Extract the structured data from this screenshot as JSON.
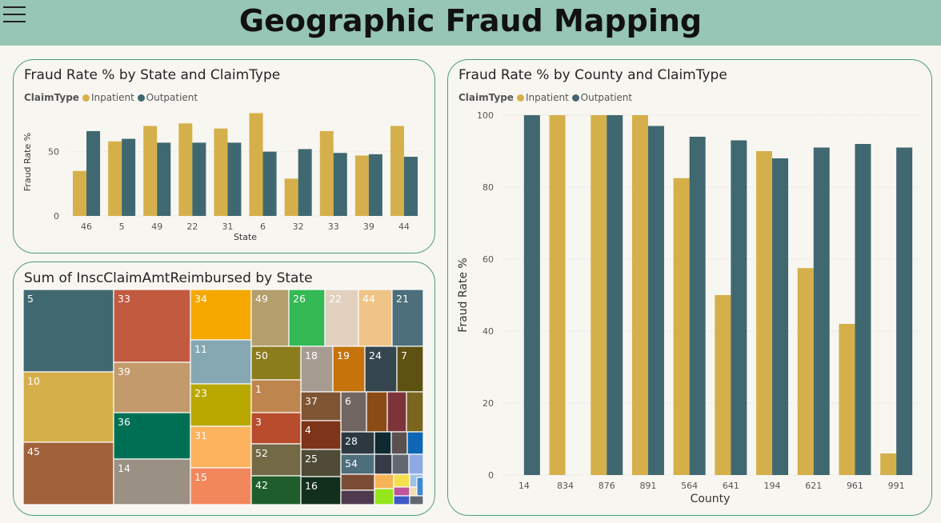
{
  "header": {
    "title": "Geographic Fraud Mapping"
  },
  "colors": {
    "inpatient": "#d5b04a",
    "outpatient": "#406871",
    "header_bg": "#97c5b6",
    "card_border": "#4f9a7a"
  },
  "chart_data": [
    {
      "type": "bar",
      "title": "Fraud Rate % by State and ClaimType",
      "legend_title": "ClaimType",
      "xlabel": "State",
      "ylabel": "Fraud Rate %",
      "categories": [
        "46",
        "5",
        "49",
        "22",
        "31",
        "6",
        "32",
        "33",
        "39",
        "44"
      ],
      "series": [
        {
          "name": "Inpatient",
          "values": [
            35,
            58,
            70,
            72,
            68,
            80,
            29,
            66,
            47,
            70
          ]
        },
        {
          "name": "Outpatient",
          "values": [
            66,
            60,
            57,
            57,
            57,
            50,
            52,
            49,
            48,
            46
          ]
        }
      ],
      "yticks": [
        0,
        50
      ],
      "ylim": [
        0,
        84
      ],
      "grid": true,
      "legend_position": "top-left"
    },
    {
      "type": "treemap",
      "title": "Sum of InscClaimAmtReimbursed by State",
      "labels": [
        "5",
        "10",
        "45",
        "33",
        "39",
        "36",
        "14",
        "34",
        "11",
        "23",
        "31",
        "15",
        "49",
        "26",
        "22",
        "44",
        "21",
        "50",
        "18",
        "19",
        "24",
        "7",
        "1",
        "37",
        "6",
        "3",
        "4",
        "28",
        "52",
        "25",
        "54",
        "42",
        "16"
      ]
    },
    {
      "type": "bar",
      "title": "Fraud Rate % by County and ClaimType",
      "legend_title": "ClaimType",
      "xlabel": "County",
      "ylabel": "Fraud Rate %",
      "categories": [
        "14",
        "834",
        "876",
        "891",
        "564",
        "641",
        "194",
        "621",
        "961",
        "991"
      ],
      "series": [
        {
          "name": "Inpatient",
          "values": [
            null,
            100,
            100,
            100,
            82.5,
            50,
            90,
            57.5,
            42,
            6
          ]
        },
        {
          "name": "Outpatient",
          "values": [
            100,
            null,
            100,
            97,
            94,
            93,
            88,
            91,
            92,
            91
          ]
        }
      ],
      "yticks": [
        0,
        20,
        40,
        60,
        80,
        100
      ],
      "ylim": [
        0,
        100
      ],
      "grid": true,
      "legend_position": "top-left"
    }
  ]
}
